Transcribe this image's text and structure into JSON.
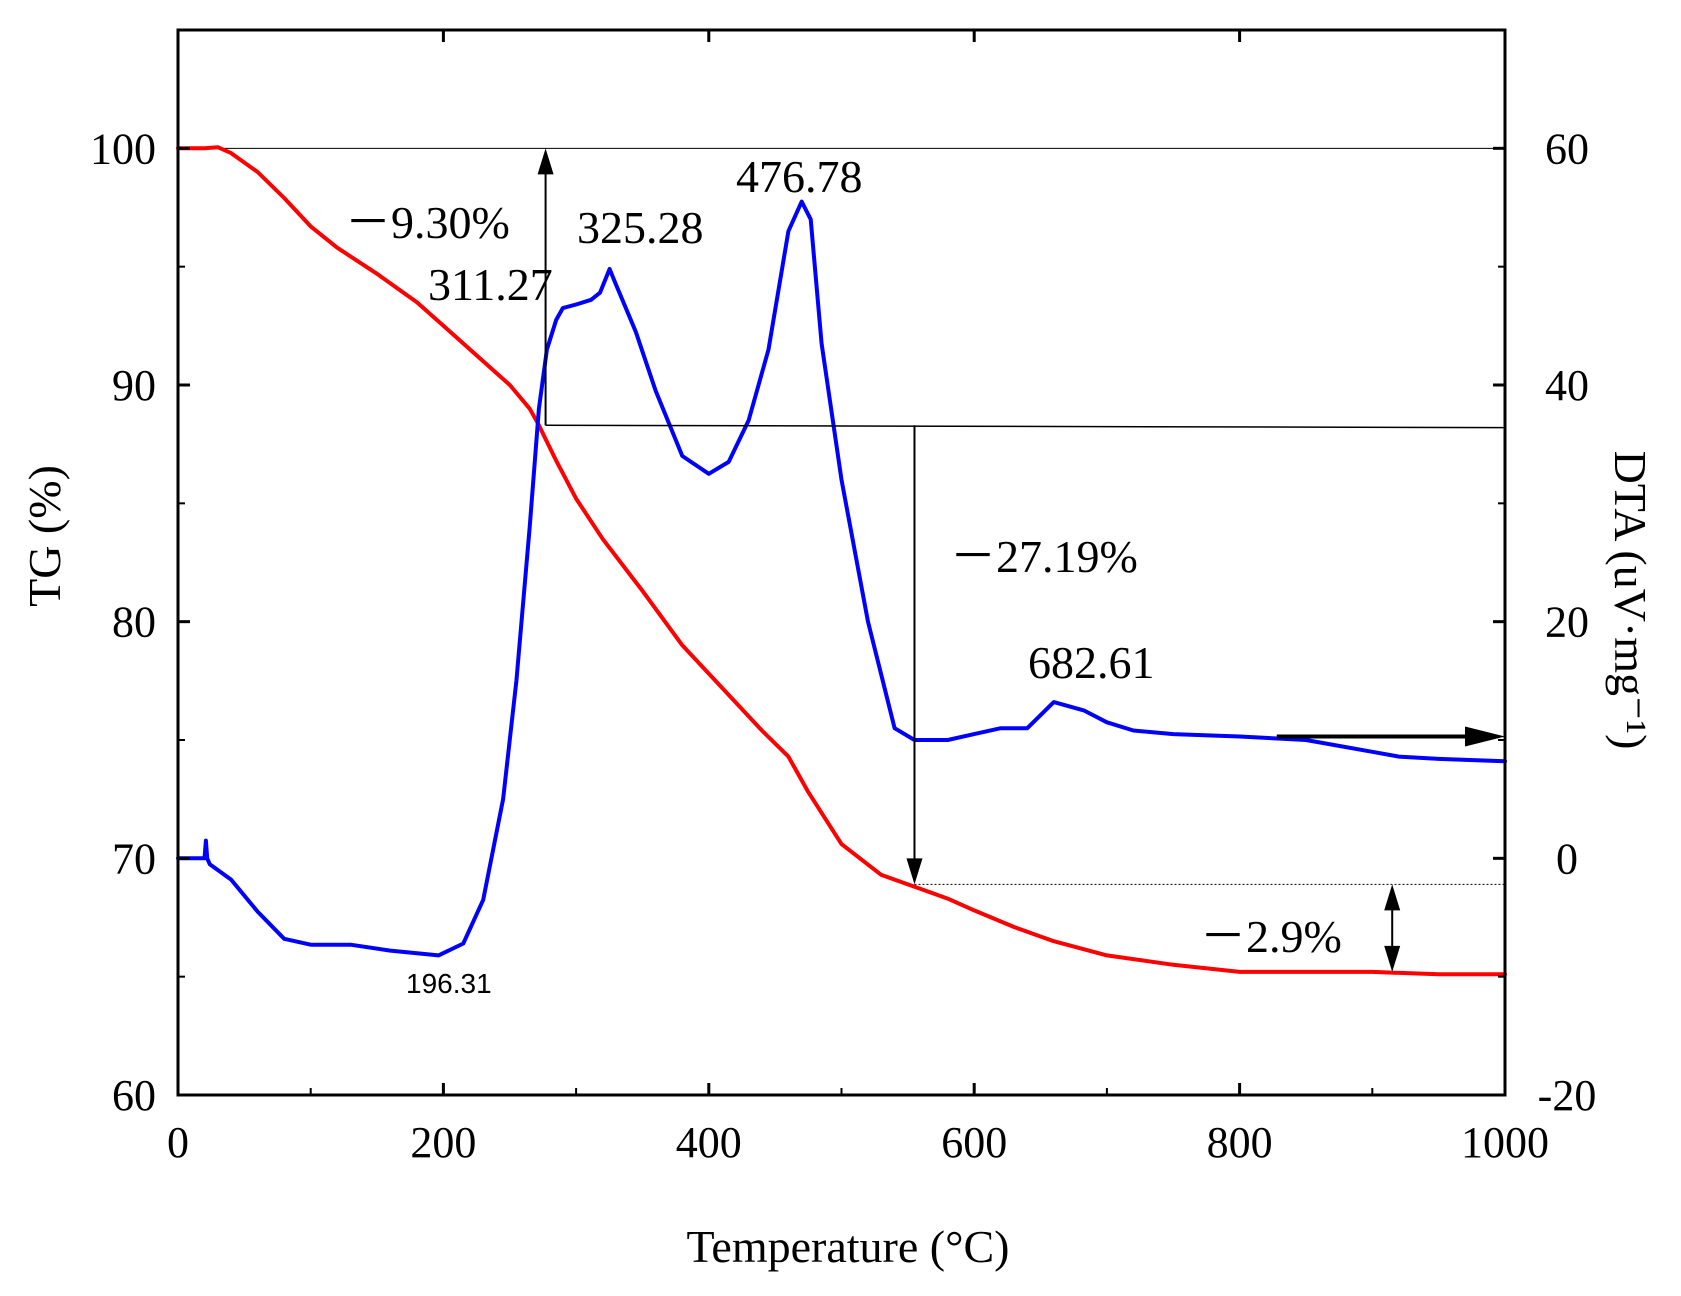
{
  "chart_data": {
    "type": "line",
    "xlabel": "Temperature (°C)",
    "ylabel_left": "TG (%)",
    "ylabel_right": "DTA (uV·mg⁻¹)",
    "xlim": [
      0,
      1000
    ],
    "ylim_left": [
      60,
      105
    ],
    "ylim_right": [
      -20,
      70
    ],
    "x_ticks": [
      "0",
      "200",
      "400",
      "600",
      "800",
      "1000"
    ],
    "y_left_ticks": [
      "60",
      "70",
      "80",
      "90",
      "100"
    ],
    "y_right_ticks": [
      "-20",
      "0",
      "20",
      "40",
      "60"
    ],
    "colors": {
      "tg": "#ff0000",
      "dta": "#0000ff",
      "axis": "#000000"
    },
    "series": [
      {
        "name": "TG",
        "axis": "left",
        "x": [
          0,
          20,
          30,
          40,
          60,
          80,
          100,
          120,
          150,
          180,
          200,
          230,
          250,
          265,
          272,
          278,
          285,
          300,
          320,
          350,
          380,
          410,
          440,
          460,
          475,
          500,
          530,
          555,
          580,
          600,
          630,
          660,
          700,
          750,
          800,
          850,
          900,
          950,
          1000
        ],
        "values": [
          100,
          100,
          100.05,
          99.8,
          99.0,
          97.9,
          96.7,
          95.8,
          94.7,
          93.5,
          92.5,
          91.0,
          90.0,
          89.0,
          88.3,
          87.6,
          86.8,
          85.2,
          83.5,
          81.3,
          79.0,
          77.2,
          75.4,
          74.3,
          72.8,
          70.6,
          69.3,
          68.8,
          68.3,
          67.8,
          67.1,
          66.5,
          65.9,
          65.5,
          65.2,
          65.2,
          65.2,
          65.1,
          65.1
        ]
      },
      {
        "name": "DTA",
        "axis": "right",
        "x": [
          0,
          20,
          21,
          22,
          24,
          40,
          60,
          80,
          100,
          130,
          160,
          196.31,
          215,
          230,
          245,
          255,
          265,
          272,
          278,
          285,
          290,
          300,
          311.27,
          318,
          325.28,
          330,
          345,
          360,
          380,
          400,
          415,
          430,
          445,
          460,
          470,
          476.78,
          485,
          500,
          520,
          540,
          555,
          565,
          580,
          600,
          620,
          640,
          660,
          682.61,
          700,
          720,
          750,
          800,
          850,
          900,
          920,
          950,
          1000
        ],
        "values": [
          0,
          0,
          1.5,
          0,
          -0.5,
          -1.8,
          -4.5,
          -6.8,
          -7.3,
          -7.3,
          -7.8,
          -8.2,
          -7.2,
          -3.5,
          5,
          15,
          28,
          38,
          43,
          45.5,
          46.5,
          46.8,
          47.2,
          47.8,
          49.8,
          48.5,
          44.5,
          39.5,
          34,
          32.5,
          33.5,
          37,
          43,
          53,
          55.5,
          54,
          43.5,
          32,
          20,
          11,
          10,
          10,
          10,
          10.5,
          11,
          11,
          13.2,
          12.5,
          11.5,
          10.8,
          10.5,
          10.3,
          10,
          9,
          8.6,
          8.4,
          8.2
        ]
      }
    ],
    "annotations": {
      "dta_peak_1": "311.27",
      "dta_peak_2": "325.28",
      "dta_peak_3": "476.78",
      "dta_peak_4": "682.61",
      "dta_min": "196.31",
      "loss_1": "－9.30%",
      "loss_2": "－27.19%",
      "loss_3": "－2.9%"
    }
  }
}
